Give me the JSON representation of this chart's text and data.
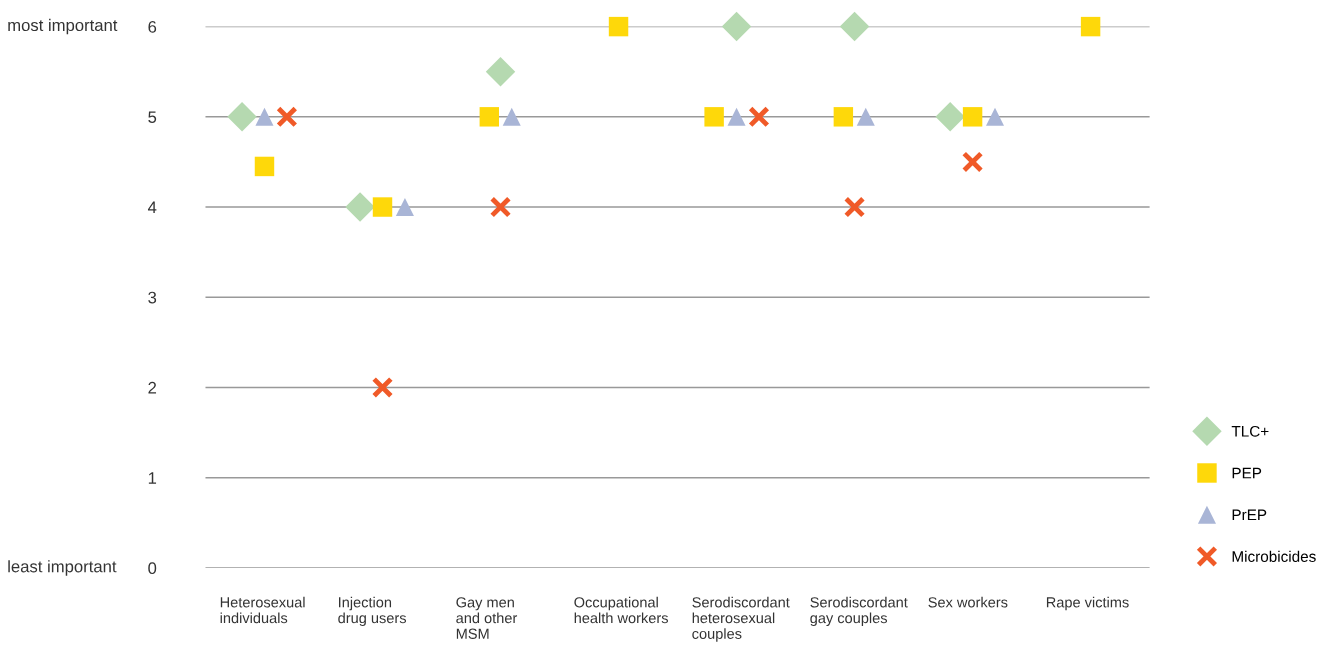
{
  "chart_data": {
    "type": "scatter",
    "categories": [
      "Heterosexual\nindividuals",
      "Injection\ndrug users",
      "Gay men\nand other\nMSM",
      "Occupational\nhealth workers",
      "Serodiscordant\nheterosexual\ncouples",
      "Serodiscordant\ngay couples",
      "Sex workers",
      "Rape victims"
    ],
    "series": [
      {
        "name": "TLC+",
        "color": "#b5d9b0",
        "marker": "diamond",
        "values": [
          5,
          4,
          5.5,
          null,
          6,
          6,
          5,
          null
        ]
      },
      {
        "name": "PEP",
        "color": "#fed80a",
        "marker": "square",
        "values": [
          4.45,
          4,
          5,
          6,
          5,
          5,
          5,
          6
        ]
      },
      {
        "name": "PrEP",
        "color": "#a9b5d6",
        "marker": "triangle",
        "values": [
          5,
          4,
          5,
          null,
          5,
          5,
          5,
          null
        ]
      },
      {
        "name": "Microbicides",
        "color": "#f05a28",
        "marker": "cross",
        "values": [
          5,
          2,
          4,
          null,
          5,
          4,
          4.5,
          null
        ]
      }
    ],
    "ylim": [
      0,
      6
    ],
    "yticks": [
      0,
      1,
      2,
      3,
      4,
      5,
      6
    ],
    "grid": "y",
    "legend": "right",
    "annotations": [
      "most important",
      "least important"
    ]
  }
}
